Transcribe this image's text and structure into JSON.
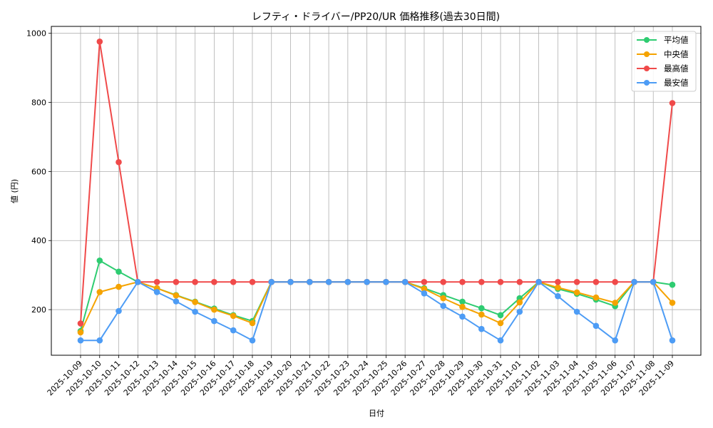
{
  "chart_data": {
    "type": "line",
    "title": "レフティ・ドライバー/PP20/UR 価格推移(過去30日間)",
    "xlabel": "日付",
    "ylabel": "値 (円)",
    "ylim": [
      68,
      1020
    ],
    "yticks": [
      200,
      400,
      600,
      800,
      1000
    ],
    "grid": true,
    "legend_position": "upper right",
    "categories": [
      "2025-10-09",
      "2025-10-10",
      "2025-10-11",
      "2025-10-12",
      "2025-10-13",
      "2025-10-14",
      "2025-10-15",
      "2025-10-16",
      "2025-10-17",
      "2025-10-18",
      "2025-10-19",
      "2025-10-20",
      "2025-10-21",
      "2025-10-22",
      "2025-10-23",
      "2025-10-24",
      "2025-10-25",
      "2025-10-26",
      "2025-10-27",
      "2025-10-28",
      "2025-10-29",
      "2025-10-30",
      "2025-10-31",
      "2025-11-01",
      "2025-11-02",
      "2025-11-03",
      "2025-11-04",
      "2025-11-05",
      "2025-11-06",
      "2025-11-07",
      "2025-11-08",
      "2025-11-09"
    ],
    "series": [
      {
        "name": "平均値",
        "color": "#2ecc71",
        "values": [
          138,
          342,
          310,
          280,
          262,
          242,
          223,
          203,
          184,
          167,
          280,
          280,
          280,
          280,
          280,
          280,
          280,
          280,
          262,
          242,
          223,
          204,
          184,
          233,
          280,
          260,
          246,
          229,
          210,
          280,
          280,
          272
        ]
      },
      {
        "name": "中央値",
        "color": "#f5a300",
        "values": [
          134,
          251,
          266,
          280,
          262,
          241,
          222,
          200,
          182,
          161,
          280,
          280,
          280,
          280,
          280,
          280,
          280,
          280,
          260,
          233,
          208,
          186,
          161,
          221,
          280,
          264,
          250,
          235,
          220,
          280,
          280,
          220
        ]
      },
      {
        "name": "最高値",
        "color": "#f04a4a",
        "values": [
          160,
          976,
          627,
          280,
          280,
          280,
          280,
          280,
          280,
          280,
          280,
          280,
          280,
          280,
          280,
          280,
          280,
          280,
          280,
          280,
          280,
          280,
          280,
          280,
          280,
          280,
          280,
          280,
          280,
          280,
          280,
          798
        ]
      },
      {
        "name": "最安値",
        "color": "#4d9cf5",
        "values": [
          111,
          111,
          196,
          280,
          251,
          224,
          194,
          167,
          140,
          111,
          280,
          280,
          280,
          280,
          280,
          280,
          280,
          280,
          247,
          211,
          180,
          144,
          111,
          194,
          280,
          239,
          194,
          153,
          111,
          280,
          280,
          111
        ]
      }
    ]
  }
}
